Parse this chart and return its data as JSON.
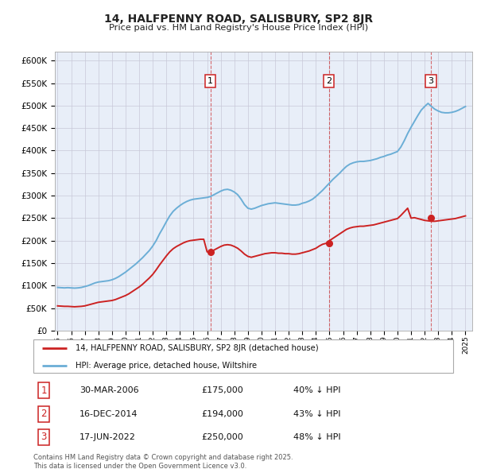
{
  "title": "14, HALFPENNY ROAD, SALISBURY, SP2 8JR",
  "subtitle": "Price paid vs. HM Land Registry's House Price Index (HPI)",
  "hpi_color": "#6baed6",
  "price_color": "#cc2222",
  "plot_bg": "#e8eef8",
  "ylim": [
    0,
    620000
  ],
  "yticks": [
    0,
    50000,
    100000,
    150000,
    200000,
    250000,
    300000,
    350000,
    400000,
    450000,
    500000,
    550000,
    600000
  ],
  "xlim_start": 1994.8,
  "xlim_end": 2025.5,
  "sale_dates": [
    2006.25,
    2014.96,
    2022.46
  ],
  "sale_prices": [
    175000,
    194000,
    250000
  ],
  "sale_labels": [
    "1",
    "2",
    "3"
  ],
  "sale_date_strs": [
    "30-MAR-2006",
    "16-DEC-2014",
    "17-JUN-2022"
  ],
  "sale_price_strs": [
    "£175,000",
    "£194,000",
    "£250,000"
  ],
  "sale_pct_strs": [
    "40% ↓ HPI",
    "43% ↓ HPI",
    "48% ↓ HPI"
  ],
  "legend_line1": "14, HALFPENNY ROAD, SALISBURY, SP2 8JR (detached house)",
  "legend_line2": "HPI: Average price, detached house, Wiltshire",
  "footer": "Contains HM Land Registry data © Crown copyright and database right 2025.\nThis data is licensed under the Open Government Licence v3.0.",
  "hpi_years": [
    1995.0,
    1995.25,
    1995.5,
    1995.75,
    1996.0,
    1996.25,
    1996.5,
    1996.75,
    1997.0,
    1997.25,
    1997.5,
    1997.75,
    1998.0,
    1998.25,
    1998.5,
    1998.75,
    1999.0,
    1999.25,
    1999.5,
    1999.75,
    2000.0,
    2000.25,
    2000.5,
    2000.75,
    2001.0,
    2001.25,
    2001.5,
    2001.75,
    2002.0,
    2002.25,
    2002.5,
    2002.75,
    2003.0,
    2003.25,
    2003.5,
    2003.75,
    2004.0,
    2004.25,
    2004.5,
    2004.75,
    2005.0,
    2005.25,
    2005.5,
    2005.75,
    2006.0,
    2006.25,
    2006.5,
    2006.75,
    2007.0,
    2007.25,
    2007.5,
    2007.75,
    2008.0,
    2008.25,
    2008.5,
    2008.75,
    2009.0,
    2009.25,
    2009.5,
    2009.75,
    2010.0,
    2010.25,
    2010.5,
    2010.75,
    2011.0,
    2011.25,
    2011.5,
    2011.75,
    2012.0,
    2012.25,
    2012.5,
    2012.75,
    2013.0,
    2013.25,
    2013.5,
    2013.75,
    2014.0,
    2014.25,
    2014.5,
    2014.75,
    2015.0,
    2015.25,
    2015.5,
    2015.75,
    2016.0,
    2016.25,
    2016.5,
    2016.75,
    2017.0,
    2017.25,
    2017.5,
    2017.75,
    2018.0,
    2018.25,
    2018.5,
    2018.75,
    2019.0,
    2019.25,
    2019.5,
    2019.75,
    2020.0,
    2020.25,
    2020.5,
    2020.75,
    2021.0,
    2021.25,
    2021.5,
    2021.75,
    2022.0,
    2022.25,
    2022.5,
    2022.75,
    2023.0,
    2023.25,
    2023.5,
    2023.75,
    2024.0,
    2024.25,
    2024.5,
    2024.75,
    2025.0
  ],
  "hpi_values": [
    96000,
    95500,
    95000,
    95500,
    95000,
    94500,
    95000,
    96000,
    98000,
    100000,
    103000,
    106000,
    108000,
    109000,
    110000,
    111000,
    113000,
    116000,
    120000,
    125000,
    130000,
    136000,
    142000,
    148000,
    155000,
    162000,
    170000,
    178000,
    188000,
    200000,
    215000,
    228000,
    242000,
    255000,
    265000,
    272000,
    278000,
    283000,
    287000,
    290000,
    292000,
    293000,
    294000,
    295000,
    296000,
    298000,
    302000,
    306000,
    310000,
    313000,
    314000,
    312000,
    308000,
    302000,
    292000,
    280000,
    272000,
    270000,
    272000,
    275000,
    278000,
    280000,
    282000,
    283000,
    284000,
    283000,
    282000,
    281000,
    280000,
    279000,
    279000,
    280000,
    283000,
    285000,
    288000,
    292000,
    298000,
    305000,
    312000,
    320000,
    328000,
    336000,
    343000,
    350000,
    358000,
    365000,
    370000,
    373000,
    375000,
    376000,
    376000,
    377000,
    378000,
    380000,
    382000,
    385000,
    387000,
    390000,
    392000,
    395000,
    398000,
    408000,
    422000,
    438000,
    452000,
    465000,
    478000,
    490000,
    498000,
    505000,
    498000,
    492000,
    488000,
    485000,
    484000,
    484000,
    485000,
    487000,
    490000,
    494000,
    498000
  ],
  "price_years": [
    1995.0,
    1995.25,
    1995.5,
    1995.75,
    1996.0,
    1996.25,
    1996.5,
    1996.75,
    1997.0,
    1997.25,
    1997.5,
    1997.75,
    1998.0,
    1998.25,
    1998.5,
    1998.75,
    1999.0,
    1999.25,
    1999.5,
    1999.75,
    2000.0,
    2000.25,
    2000.5,
    2000.75,
    2001.0,
    2001.25,
    2001.5,
    2001.75,
    2002.0,
    2002.25,
    2002.5,
    2002.75,
    2003.0,
    2003.25,
    2003.5,
    2003.75,
    2004.0,
    2004.25,
    2004.5,
    2004.75,
    2005.0,
    2005.25,
    2005.5,
    2005.75,
    2006.0,
    2006.25,
    2006.5,
    2006.75,
    2007.0,
    2007.25,
    2007.5,
    2007.75,
    2008.0,
    2008.25,
    2008.5,
    2008.75,
    2009.0,
    2009.25,
    2009.5,
    2009.75,
    2010.0,
    2010.25,
    2010.5,
    2010.75,
    2011.0,
    2011.25,
    2011.5,
    2011.75,
    2012.0,
    2012.25,
    2012.5,
    2012.75,
    2013.0,
    2013.25,
    2013.5,
    2013.75,
    2014.0,
    2014.25,
    2014.5,
    2014.75,
    2015.0,
    2015.25,
    2015.5,
    2015.75,
    2016.0,
    2016.25,
    2016.5,
    2016.75,
    2017.0,
    2017.25,
    2017.5,
    2017.75,
    2018.0,
    2018.25,
    2018.5,
    2018.75,
    2019.0,
    2019.25,
    2019.5,
    2019.75,
    2020.0,
    2020.25,
    2020.5,
    2020.75,
    2021.0,
    2021.25,
    2021.5,
    2021.75,
    2022.0,
    2022.25,
    2022.5,
    2022.75,
    2023.0,
    2023.25,
    2023.5,
    2023.75,
    2024.0,
    2024.25,
    2024.5,
    2024.75,
    2025.0
  ],
  "price_values": [
    55000,
    54500,
    54000,
    54000,
    53500,
    53000,
    53500,
    54000,
    55000,
    57000,
    59000,
    61000,
    63000,
    64000,
    65000,
    66000,
    67000,
    69000,
    72000,
    75000,
    78000,
    82000,
    87000,
    92000,
    97000,
    103000,
    110000,
    117000,
    125000,
    135000,
    146000,
    156000,
    166000,
    175000,
    182000,
    187000,
    191000,
    195000,
    198000,
    200000,
    201000,
    202000,
    203000,
    203000,
    175000,
    175000,
    179000,
    183000,
    187000,
    190000,
    191000,
    190000,
    187000,
    183000,
    177000,
    170000,
    165000,
    163000,
    165000,
    167000,
    169000,
    171000,
    172000,
    173000,
    173000,
    172000,
    172000,
    171000,
    171000,
    170000,
    170000,
    171000,
    173000,
    175000,
    177000,
    180000,
    183000,
    188000,
    192000,
    194000,
    200000,
    205000,
    210000,
    215000,
    220000,
    225000,
    228000,
    230000,
    231000,
    232000,
    232000,
    233000,
    234000,
    235000,
    237000,
    239000,
    241000,
    243000,
    245000,
    247000,
    249000,
    256000,
    264000,
    272000,
    250000,
    251000,
    249000,
    247000,
    245000,
    244000,
    243000,
    243000,
    244000,
    245000,
    246000,
    247000,
    248000,
    249000,
    251000,
    253000,
    255000
  ]
}
